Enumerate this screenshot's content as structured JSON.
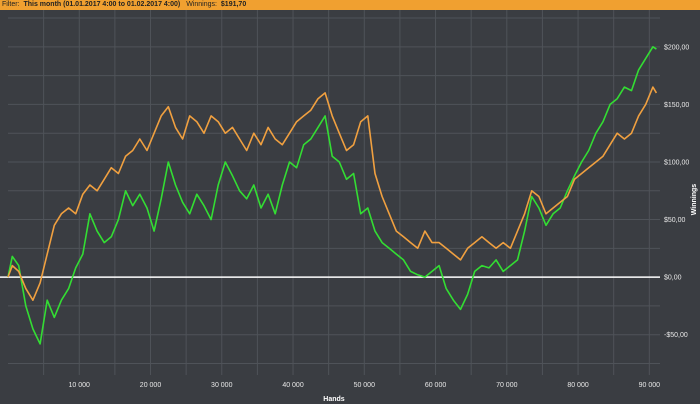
{
  "filter": {
    "label": "Filter:",
    "value": "This month (01.01.2017 4:00 to 01.02.2017 4:00)",
    "winnings_label": "Winnings:",
    "winnings_value": "$191,70"
  },
  "colors": {
    "background": "#3a3d42",
    "grid": "#4f5359",
    "zero_line": "#ffffff",
    "series_green": "#33dd33",
    "series_orange": "#f0a040",
    "bar": "#f0a030"
  },
  "chart_data": {
    "type": "line",
    "xlabel": "Hands",
    "ylabel": "Winnings",
    "xlim": [
      0,
      91500
    ],
    "ylim": [
      -85,
      232
    ],
    "x_ticks": [
      10000,
      20000,
      30000,
      40000,
      50000,
      60000,
      70000,
      80000,
      90000
    ],
    "x_tick_labels": [
      "10 000",
      "20 000",
      "30 000",
      "40 000",
      "50 000",
      "60 000",
      "70 000",
      "80 000",
      "90 000"
    ],
    "y_ticks": [
      -50,
      0,
      50,
      100,
      150,
      200
    ],
    "y_tick_labels": [
      "-$50,00",
      "$0,00",
      "$50,00",
      "$100,00",
      "$150,00",
      "$200,00"
    ],
    "grid": true,
    "series": [
      {
        "color": "#33dd33",
        "points": [
          [
            0,
            0
          ],
          [
            600,
            18
          ],
          [
            1500,
            10
          ],
          [
            2500,
            -25
          ],
          [
            3500,
            -45
          ],
          [
            4500,
            -58
          ],
          [
            5500,
            -20
          ],
          [
            6500,
            -35
          ],
          [
            7500,
            -20
          ],
          [
            8500,
            -10
          ],
          [
            9500,
            8
          ],
          [
            10500,
            20
          ],
          [
            11500,
            55
          ],
          [
            12500,
            40
          ],
          [
            13500,
            30
          ],
          [
            14500,
            35
          ],
          [
            15500,
            50
          ],
          [
            16500,
            75
          ],
          [
            17500,
            62
          ],
          [
            18500,
            72
          ],
          [
            19500,
            60
          ],
          [
            20500,
            40
          ],
          [
            21500,
            68
          ],
          [
            22500,
            100
          ],
          [
            23500,
            80
          ],
          [
            24500,
            65
          ],
          [
            25500,
            55
          ],
          [
            26500,
            72
          ],
          [
            27500,
            62
          ],
          [
            28500,
            50
          ],
          [
            29500,
            80
          ],
          [
            30500,
            100
          ],
          [
            31500,
            88
          ],
          [
            32500,
            75
          ],
          [
            33500,
            68
          ],
          [
            34500,
            80
          ],
          [
            35500,
            60
          ],
          [
            36500,
            72
          ],
          [
            37500,
            55
          ],
          [
            38500,
            80
          ],
          [
            39500,
            100
          ],
          [
            40500,
            95
          ],
          [
            41500,
            115
          ],
          [
            42500,
            120
          ],
          [
            43500,
            130
          ],
          [
            44500,
            140
          ],
          [
            45500,
            105
          ],
          [
            46500,
            100
          ],
          [
            47500,
            85
          ],
          [
            48500,
            90
          ],
          [
            49500,
            55
          ],
          [
            50500,
            60
          ],
          [
            51500,
            40
          ],
          [
            52500,
            30
          ],
          [
            53500,
            25
          ],
          [
            54500,
            20
          ],
          [
            55500,
            15
          ],
          [
            56500,
            5
          ],
          [
            57500,
            2
          ],
          [
            58500,
            0
          ],
          [
            59500,
            5
          ],
          [
            60500,
            10
          ],
          [
            61500,
            -10
          ],
          [
            62500,
            -20
          ],
          [
            63500,
            -28
          ],
          [
            64500,
            -15
          ],
          [
            65500,
            5
          ],
          [
            66500,
            10
          ],
          [
            67500,
            8
          ],
          [
            68500,
            15
          ],
          [
            69500,
            5
          ],
          [
            70500,
            10
          ],
          [
            71500,
            15
          ],
          [
            72500,
            40
          ],
          [
            73500,
            70
          ],
          [
            74500,
            60
          ],
          [
            75500,
            45
          ],
          [
            76500,
            55
          ],
          [
            77500,
            60
          ],
          [
            78500,
            75
          ],
          [
            79500,
            88
          ],
          [
            80500,
            100
          ],
          [
            81500,
            110
          ],
          [
            82500,
            125
          ],
          [
            83500,
            135
          ],
          [
            84500,
            150
          ],
          [
            85500,
            155
          ],
          [
            86500,
            165
          ],
          [
            87500,
            162
          ],
          [
            88500,
            180
          ],
          [
            89500,
            190
          ],
          [
            90500,
            200
          ],
          [
            91000,
            198
          ]
        ]
      },
      {
        "color": "#f0a040",
        "points": [
          [
            0,
            0
          ],
          [
            600,
            10
          ],
          [
            1500,
            5
          ],
          [
            2500,
            -10
          ],
          [
            3500,
            -20
          ],
          [
            4500,
            -5
          ],
          [
            5500,
            20
          ],
          [
            6500,
            45
          ],
          [
            7500,
            55
          ],
          [
            8500,
            60
          ],
          [
            9500,
            55
          ],
          [
            10500,
            72
          ],
          [
            11500,
            80
          ],
          [
            12500,
            75
          ],
          [
            13500,
            85
          ],
          [
            14500,
            95
          ],
          [
            15500,
            90
          ],
          [
            16500,
            105
          ],
          [
            17500,
            110
          ],
          [
            18500,
            120
          ],
          [
            19500,
            110
          ],
          [
            20500,
            125
          ],
          [
            21500,
            140
          ],
          [
            22500,
            148
          ],
          [
            23500,
            130
          ],
          [
            24500,
            120
          ],
          [
            25500,
            140
          ],
          [
            26500,
            135
          ],
          [
            27500,
            125
          ],
          [
            28500,
            140
          ],
          [
            29500,
            135
          ],
          [
            30500,
            125
          ],
          [
            31500,
            130
          ],
          [
            32500,
            120
          ],
          [
            33500,
            110
          ],
          [
            34500,
            125
          ],
          [
            35500,
            115
          ],
          [
            36500,
            130
          ],
          [
            37500,
            120
          ],
          [
            38500,
            115
          ],
          [
            39500,
            125
          ],
          [
            40500,
            135
          ],
          [
            41500,
            140
          ],
          [
            42500,
            145
          ],
          [
            43500,
            155
          ],
          [
            44500,
            160
          ],
          [
            45500,
            140
          ],
          [
            46500,
            125
          ],
          [
            47500,
            110
          ],
          [
            48500,
            115
          ],
          [
            49500,
            135
          ],
          [
            50500,
            140
          ],
          [
            51500,
            90
          ],
          [
            52500,
            70
          ],
          [
            53500,
            55
          ],
          [
            54500,
            40
          ],
          [
            55500,
            35
          ],
          [
            56500,
            30
          ],
          [
            57500,
            25
          ],
          [
            58500,
            40
          ],
          [
            59500,
            30
          ],
          [
            60500,
            30
          ],
          [
            61500,
            25
          ],
          [
            62500,
            20
          ],
          [
            63500,
            15
          ],
          [
            64500,
            25
          ],
          [
            65500,
            30
          ],
          [
            66500,
            35
          ],
          [
            67500,
            30
          ],
          [
            68500,
            25
          ],
          [
            69500,
            30
          ],
          [
            70500,
            25
          ],
          [
            71500,
            40
          ],
          [
            72500,
            55
          ],
          [
            73500,
            75
          ],
          [
            74500,
            70
          ],
          [
            75500,
            55
          ],
          [
            76500,
            60
          ],
          [
            77500,
            65
          ],
          [
            78500,
            70
          ],
          [
            79500,
            85
          ],
          [
            80500,
            90
          ],
          [
            81500,
            95
          ],
          [
            82500,
            100
          ],
          [
            83500,
            105
          ],
          [
            84500,
            115
          ],
          [
            85500,
            125
          ],
          [
            86500,
            120
          ],
          [
            87500,
            125
          ],
          [
            88500,
            140
          ],
          [
            89500,
            150
          ],
          [
            90500,
            165
          ],
          [
            91000,
            160
          ]
        ]
      }
    ]
  }
}
